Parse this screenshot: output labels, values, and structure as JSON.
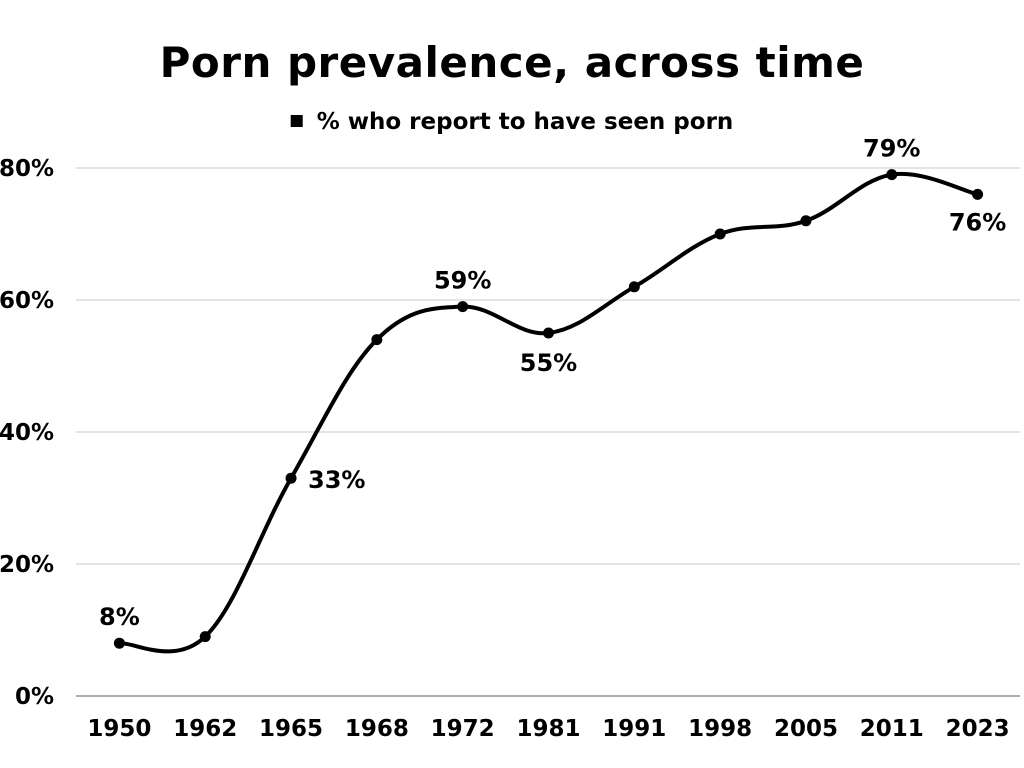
{
  "chart_data": {
    "type": "line",
    "title": "Porn prevalence, across time",
    "xlabel": "",
    "ylabel": "",
    "categories": [
      "1950",
      "1962",
      "1965",
      "1968",
      "1972",
      "1981",
      "1991",
      "1998",
      "2005",
      "2011",
      "2023"
    ],
    "series": [
      {
        "name": "% who report to have seen porn",
        "values": [
          8,
          9,
          33,
          54,
          59,
          55,
          62,
          70,
          72,
          79,
          76
        ],
        "color": "#000000",
        "data_labels": [
          "8%",
          "",
          "33%",
          "",
          "59%",
          "55%",
          "",
          "",
          "",
          "79%",
          "76%"
        ]
      }
    ],
    "ylim": [
      0,
      80
    ],
    "yticks": [
      "0%",
      "20%",
      "40%",
      "60%",
      "80%"
    ],
    "ytick_values": [
      0,
      20,
      40,
      60,
      80
    ],
    "grid": true,
    "smooth": true,
    "legend_position": "top-center"
  }
}
